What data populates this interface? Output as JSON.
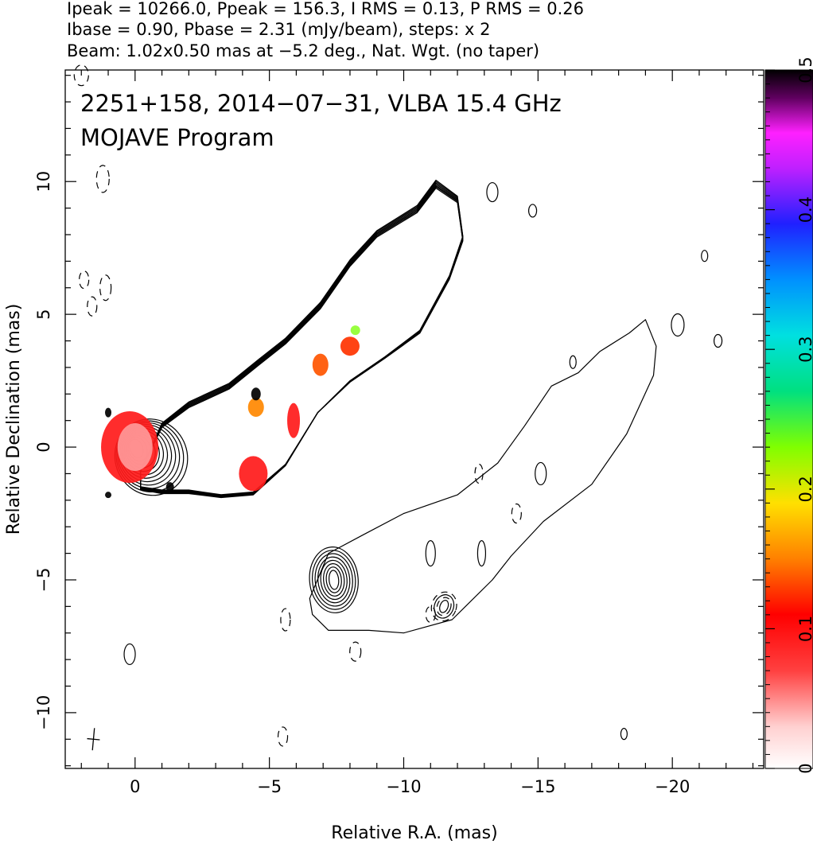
{
  "chart_data": {
    "type": "contour",
    "header": [
      "Ipeak = 10266.0, Ppeak = 156.3, I RMS = 0.13, P RMS = 0.26",
      "Ibase = 0.90, Pbase = 2.31 (mJy/beam), steps: x 2",
      "Beam: 1.02x0.50 mas at −5.2 deg., Nat. Wgt. (no taper)"
    ],
    "annotation": [
      "2251+158, 2014−07−31, VLBA 15.4 GHz",
      "MOJAVE Program"
    ],
    "xlabel": "Relative R.A. (mas)",
    "ylabel": "Relative Declination (mas)",
    "xlim": [
      2.6,
      -23.4
    ],
    "ylim": [
      -12.1,
      14.2
    ],
    "x_ticks": [
      0,
      -5,
      -10,
      -15,
      -20
    ],
    "x_tick_labels": [
      "0",
      "−5",
      "−10",
      "−15",
      "−20"
    ],
    "y_ticks": [
      10,
      5,
      0,
      -5,
      -10
    ],
    "y_tick_labels": [
      "10",
      "5",
      "0",
      "−5",
      "−10"
    ],
    "colorbar": {
      "min": 0,
      "max": 0.5,
      "ticks": [
        0,
        0.1,
        0.2,
        0.3,
        0.4,
        0.5
      ],
      "tick_labels": [
        "0",
        "0.1",
        "0.2",
        "0.3",
        "0.4",
        "0.5"
      ]
    },
    "core": {
      "x": 0.0,
      "y": 0.0
    },
    "beam": {
      "major_mas": 1.02,
      "minor_mas": 0.5,
      "pa_deg": -5.2,
      "position": "bottom-left"
    }
  },
  "colors": {
    "contour": "#000000",
    "frame": "#000000",
    "fractional_pol_low": "#ff1a1a",
    "fractional_pol_high": "#000000"
  }
}
